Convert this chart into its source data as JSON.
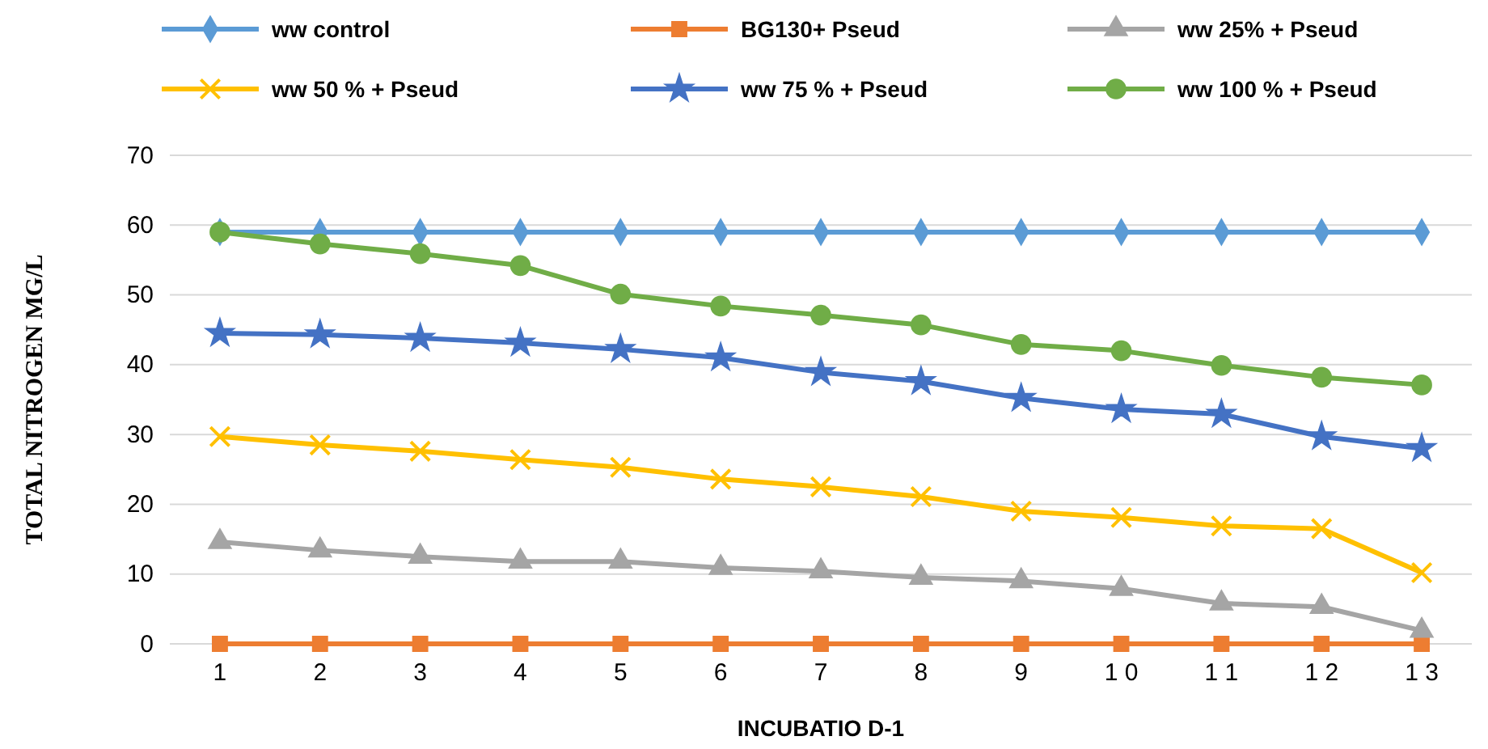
{
  "chart_data": {
    "type": "line",
    "xlabel": "INCUBATIO D-1",
    "ylabel": "TOTAL NITROGEN MG/L",
    "categories": [
      "1",
      "2",
      "3",
      "4",
      "5",
      "6",
      "7",
      "8",
      "9",
      "1 0",
      "1 1",
      "1 2",
      "1 3"
    ],
    "ylim": [
      0,
      70
    ],
    "yticks": [
      0,
      10,
      20,
      30,
      40,
      50,
      60,
      70
    ],
    "grid": "y",
    "legend": "top",
    "series": [
      {
        "name": "ww control",
        "color": "#5b9bd5",
        "marker": "diamond",
        "values": [
          59,
          59,
          59,
          59,
          59,
          59,
          59,
          59,
          59,
          59,
          59,
          59,
          59
        ]
      },
      {
        "name": "BG130+ Pseud",
        "color": "#ed7d31",
        "marker": "square",
        "values": [
          0,
          0,
          0,
          0,
          0,
          0,
          0,
          0,
          0,
          0,
          0,
          0,
          0
        ]
      },
      {
        "name": "ww 25%  + Pseud",
        "color": "#a5a5a5",
        "marker": "triangle",
        "values": [
          14.6,
          13.4,
          12.5,
          11.8,
          11.8,
          10.9,
          10.4,
          9.5,
          9.0,
          7.9,
          5.8,
          5.3,
          1.9
        ]
      },
      {
        "name": "ww 50 % + Pseud",
        "color": "#ffc000",
        "marker": "cross",
        "values": [
          29.7,
          28.5,
          27.6,
          26.4,
          25.3,
          23.6,
          22.5,
          21.1,
          19.0,
          18.1,
          16.9,
          16.5,
          10.2
        ]
      },
      {
        "name": "ww 75 %  + Pseud",
        "color": "#4472c4",
        "marker": "star",
        "values": [
          44.5,
          44.3,
          43.8,
          43.1,
          42.2,
          41.0,
          38.9,
          37.6,
          35.2,
          33.6,
          32.9,
          29.7,
          28.0
        ]
      },
      {
        "name": "ww 100 %  + Pseud",
        "color": "#70ad47",
        "marker": "circle",
        "values": [
          59,
          57.3,
          55.9,
          54.2,
          50.1,
          48.4,
          47.1,
          45.7,
          42.9,
          42.0,
          39.9,
          38.2,
          37.1
        ]
      }
    ]
  }
}
